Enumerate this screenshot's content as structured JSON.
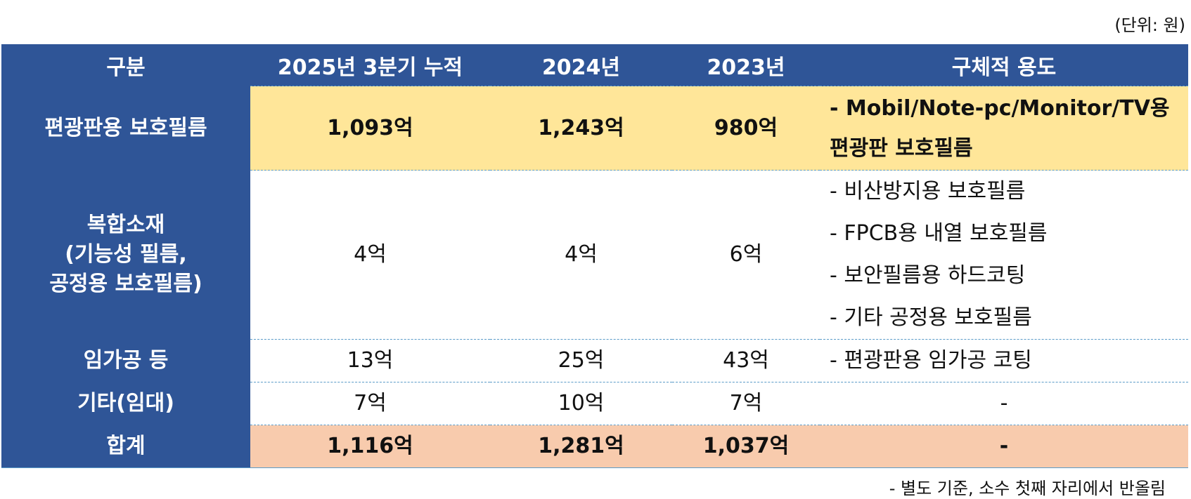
{
  "header": {
    "unit": "(단위: 원)"
  },
  "table": {
    "columns": [
      "구분",
      "2025년 3분기 누적",
      "2024년",
      "2023년",
      "구체적 용도"
    ],
    "rows": [
      [
        "편광판용 보호필름",
        "1,093억",
        "1,243억",
        "980억",
        [
          "- Mobil/Note-pc/Monitor/TV용",
          "편광판 보호필름"
        ]
      ],
      [
        [
          "복합소재",
          "(기능성 필름,",
          "공정용 보호필름)"
        ],
        "4억",
        "4억",
        "6억",
        [
          "- 비산방지용 보호필름",
          "- FPCB용 내열 보호필름",
          "- 보안필름용 하드코팅",
          "- 기타 공정용 보호필름"
        ]
      ],
      [
        "임가공 등",
        "13억",
        "25억",
        "43억",
        "- 편광판용 임가공 코팅"
      ],
      [
        "기타(임대)",
        "7억",
        "10억",
        "7억",
        "-"
      ],
      [
        "합계",
        "1,116억",
        "1,281억",
        "1,037억",
        "-"
      ]
    ]
  },
  "footnote": "- 별도 기준, 소수 첫째 자리에서 반올림"
}
